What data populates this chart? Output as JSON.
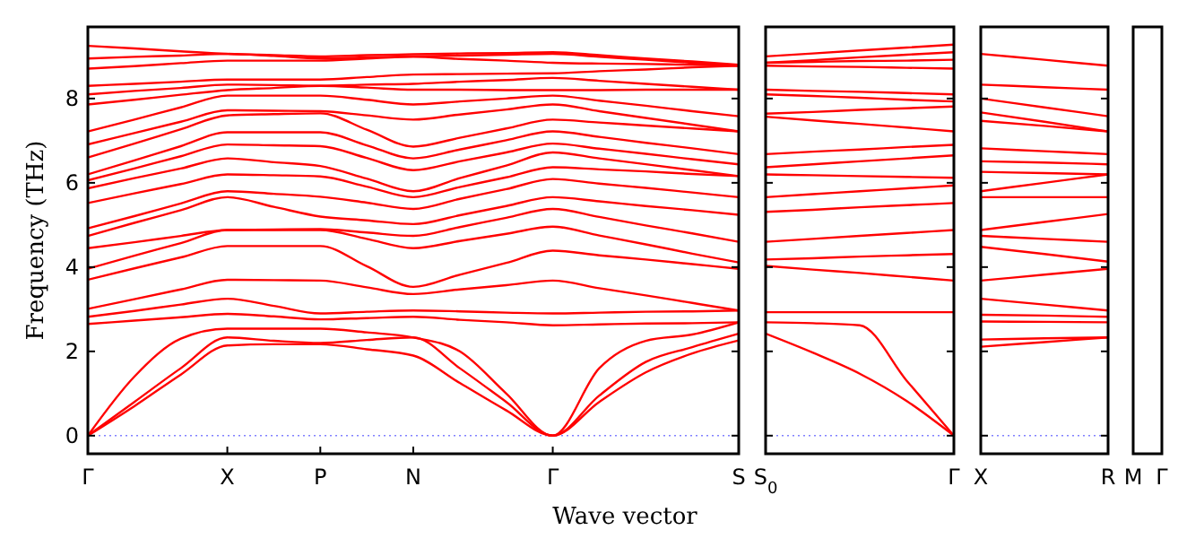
{
  "chart_data": [
    {
      "type": "line",
      "xlabel": "Wave vector",
      "ylabel": "Frequency (THz)",
      "ylim": [
        -0.43,
        9.7
      ],
      "yticks": [
        0,
        2,
        4,
        6,
        8
      ],
      "categories": [
        "Γ",
        null,
        null,
        "X",
        null,
        "P",
        null,
        "N",
        null,
        null,
        "Γ",
        null,
        null,
        null,
        "S"
      ],
      "ref_lines": [
        {
          "axis": "y",
          "value": 0,
          "color": "#8080ff",
          "line_style": "dotted"
        }
      ],
      "series": [
        {
          "color": "#ff0000",
          "values": [
            0,
            0.7,
            1.45,
            2.14,
            2.17,
            2.17,
            2.05,
            1.9,
            1.25,
            0.6,
            0,
            0.8,
            1.5,
            1.95,
            2.26
          ]
        },
        {
          "color": "#ff0000",
          "values": [
            0,
            0.8,
            1.6,
            2.33,
            2.25,
            2.2,
            2.27,
            2.33,
            1.6,
            0.8,
            0,
            0.95,
            1.75,
            2.1,
            2.42
          ]
        },
        {
          "color": "#ff0000",
          "values": [
            0,
            1.4,
            2.3,
            2.54,
            2.54,
            2.54,
            2.45,
            2.33,
            2.0,
            1.0,
            0,
            1.6,
            2.25,
            2.4,
            2.69
          ]
        },
        {
          "color": "#ff0000",
          "values": [
            2.65,
            2.73,
            2.81,
            2.89,
            2.83,
            2.76,
            2.79,
            2.82,
            2.75,
            2.69,
            2.62,
            2.64,
            2.66,
            2.67,
            2.69
          ]
        },
        {
          "color": "#ff0000",
          "values": [
            2.82,
            2.96,
            3.11,
            3.25,
            3.08,
            2.9,
            2.94,
            2.97,
            2.95,
            2.92,
            2.9,
            2.92,
            2.94,
            2.95,
            2.97
          ]
        },
        {
          "color": "#ff0000",
          "values": [
            3.01,
            3.24,
            3.47,
            3.7,
            3.69,
            3.68,
            3.52,
            3.36,
            3.47,
            3.57,
            3.68,
            3.5,
            3.33,
            3.15,
            2.97
          ]
        },
        {
          "color": "#ff0000",
          "values": [
            3.7,
            3.97,
            4.23,
            4.5,
            4.5,
            4.5,
            4.02,
            3.53,
            3.82,
            4.1,
            4.39,
            4.28,
            4.18,
            4.07,
            3.96
          ]
        },
        {
          "color": "#ff0000",
          "values": [
            3.96,
            4.27,
            4.57,
            4.88,
            4.88,
            4.88,
            4.67,
            4.45,
            4.62,
            4.79,
            4.96,
            4.75,
            4.54,
            4.32,
            4.11
          ]
        },
        {
          "color": "#ff0000",
          "values": [
            4.45,
            4.59,
            4.74,
            4.88,
            4.89,
            4.9,
            4.82,
            4.74,
            4.95,
            5.17,
            5.38,
            5.19,
            4.99,
            4.8,
            4.6
          ]
        },
        {
          "color": "#ff0000",
          "values": [
            4.74,
            5.05,
            5.35,
            5.66,
            5.43,
            5.2,
            5.11,
            5.02,
            5.23,
            5.45,
            5.66,
            5.56,
            5.45,
            5.35,
            5.24
          ]
        },
        {
          "color": "#ff0000",
          "values": [
            4.92,
            5.21,
            5.51,
            5.8,
            5.74,
            5.67,
            5.53,
            5.38,
            5.62,
            5.85,
            6.09,
            5.98,
            5.88,
            5.77,
            5.66
          ]
        },
        {
          "color": "#ff0000",
          "values": [
            5.52,
            5.75,
            5.97,
            6.2,
            6.18,
            6.15,
            5.91,
            5.66,
            5.9,
            6.13,
            6.37,
            6.32,
            6.27,
            6.21,
            6.16
          ]
        },
        {
          "color": "#ff0000",
          "values": [
            5.87,
            6.11,
            6.34,
            6.58,
            6.49,
            6.4,
            6.1,
            5.8,
            6.11,
            6.41,
            6.72,
            6.58,
            6.44,
            6.3,
            6.16
          ]
        },
        {
          "color": "#ff0000",
          "values": [
            6.06,
            6.34,
            6.63,
            6.91,
            6.89,
            6.87,
            6.59,
            6.3,
            6.51,
            6.72,
            6.93,
            6.81,
            6.69,
            6.56,
            6.44
          ]
        },
        {
          "color": "#ff0000",
          "values": [
            6.2,
            6.53,
            6.87,
            7.2,
            7.2,
            7.2,
            6.89,
            6.58,
            6.79,
            7.01,
            7.22,
            7.09,
            6.95,
            6.82,
            6.68
          ]
        },
        {
          "color": "#ff0000",
          "values": [
            6.6,
            6.93,
            7.27,
            7.6,
            7.63,
            7.65,
            7.26,
            6.86,
            7.07,
            7.29,
            7.5,
            7.43,
            7.36,
            7.29,
            7.22
          ]
        },
        {
          "color": "#ff0000",
          "values": [
            6.91,
            7.18,
            7.45,
            7.72,
            7.71,
            7.7,
            7.6,
            7.5,
            7.62,
            7.74,
            7.86,
            7.7,
            7.54,
            7.38,
            7.22
          ]
        },
        {
          "color": "#ff0000",
          "values": [
            7.22,
            7.5,
            7.79,
            8.07,
            8.07,
            8.07,
            7.97,
            7.86,
            7.93,
            8,
            8.07,
            7.95,
            7.83,
            7.7,
            7.58
          ]
        },
        {
          "color": "#ff0000",
          "values": [
            7.86,
            7.97,
            8.09,
            8.2,
            8.25,
            8.3,
            8.26,
            8.21,
            8.21,
            8.2,
            8.2,
            8.2,
            8.21,
            8.21,
            8.21
          ]
        },
        {
          "color": "#ff0000",
          "values": [
            8.1,
            8.18,
            8.25,
            8.33,
            8.32,
            8.3,
            8.33,
            8.35,
            8.4,
            8.44,
            8.49,
            8.42,
            8.35,
            8.28,
            8.21
          ]
        },
        {
          "color": "#ff0000",
          "values": [
            8.3,
            8.35,
            8.4,
            8.45,
            8.45,
            8.45,
            8.51,
            8.57,
            8.58,
            8.59,
            8.6,
            8.65,
            8.69,
            8.74,
            8.78
          ]
        },
        {
          "color": "#ff0000",
          "values": [
            8.71,
            8.77,
            8.84,
            8.9,
            8.9,
            8.9,
            8.95,
            8.99,
            8.94,
            8.9,
            8.85,
            8.83,
            8.82,
            8.8,
            8.78
          ]
        },
        {
          "color": "#ff0000",
          "values": [
            8.95,
            8.99,
            9.02,
            9.06,
            9.01,
            8.95,
            8.98,
            9,
            9.02,
            9.04,
            9.06,
            8.99,
            8.92,
            8.85,
            8.78
          ]
        },
        {
          "color": "#ff0000",
          "values": [
            9.25,
            9.19,
            9.12,
            9.06,
            9.03,
            9,
            9.03,
            9.05,
            9.07,
            9.08,
            9.1,
            9.03,
            8.95,
            8.88,
            8.8
          ]
        }
      ]
    },
    {
      "type": "line",
      "ylim": [
        -0.43,
        9.7
      ],
      "yticks": [
        0,
        2,
        4,
        6,
        8
      ],
      "tick_labels": "x",
      "categories": [
        "S$_{0}$",
        null,
        null,
        null,
        "Γ"
      ],
      "ref_lines": [
        {
          "axis": "y",
          "value": 0,
          "color": "#8080ff",
          "line_style": "dotted"
        }
      ],
      "series": [
        {
          "color": "#ff0000",
          "values": [
            2.42,
            1.97,
            1.47,
            0.82,
            0
          ]
        },
        {
          "color": "#ff0000",
          "values": [
            2.69,
            2.67,
            2.62,
            1.3,
            0
          ]
        },
        {
          "color": "#ff0000",
          "values": [
            2.93,
            2.93,
            2.93,
            2.93,
            2.93
          ]
        },
        {
          "color": "#ff0000",
          "values": [
            4.03,
            3.94,
            3.86,
            3.77,
            3.68
          ]
        },
        {
          "color": "#ff0000",
          "values": [
            4.18,
            4.21,
            4.25,
            4.28,
            4.31
          ]
        },
        {
          "color": "#ff0000",
          "values": [
            4.6,
            4.67,
            4.74,
            4.81,
            4.88
          ]
        },
        {
          "color": "#ff0000",
          "values": [
            5.31,
            5.36,
            5.42,
            5.47,
            5.52
          ]
        },
        {
          "color": "#ff0000",
          "values": [
            5.66,
            5.73,
            5.8,
            5.87,
            5.94
          ]
        },
        {
          "color": "#ff0000",
          "values": [
            6.2,
            6.18,
            6.16,
            6.14,
            6.12
          ]
        },
        {
          "color": "#ff0000",
          "values": [
            6.37,
            6.44,
            6.51,
            6.58,
            6.65
          ]
        },
        {
          "color": "#ff0000",
          "values": [
            6.68,
            6.74,
            6.79,
            6.85,
            6.9
          ]
        },
        {
          "color": "#ff0000",
          "values": [
            7.57,
            7.48,
            7.4,
            7.31,
            7.22
          ]
        },
        {
          "color": "#ff0000",
          "values": [
            7.64,
            7.68,
            7.73,
            7.77,
            7.81
          ]
        },
        {
          "color": "#ff0000",
          "values": [
            8.1,
            8.06,
            8.02,
            7.97,
            7.93
          ]
        },
        {
          "color": "#ff0000",
          "values": [
            8.21,
            8.18,
            8.16,
            8.13,
            8.1
          ]
        },
        {
          "color": "#ff0000",
          "values": [
            8.78,
            8.76,
            8.75,
            8.73,
            8.71
          ]
        },
        {
          "color": "#ff0000",
          "values": [
            8.85,
            8.87,
            8.89,
            8.9,
            8.92
          ]
        },
        {
          "color": "#ff0000",
          "values": [
            8.85,
            8.91,
            8.98,
            9.04,
            9.1
          ]
        },
        {
          "color": "#ff0000",
          "values": [
            9.0,
            9.07,
            9.14,
            9.21,
            9.28
          ]
        }
      ]
    },
    {
      "type": "line",
      "ylim": [
        -0.43,
        9.7
      ],
      "yticks": [
        0,
        2,
        4,
        6,
        8
      ],
      "tick_labels": "x",
      "categories": [
        "X",
        null,
        "R"
      ],
      "ref_lines": [
        {
          "axis": "y",
          "value": 0,
          "color": "#8080ff",
          "line_style": "dotted"
        }
      ],
      "series": [
        {
          "color": "#ff0000",
          "values": [
            2.11,
            2.22,
            2.33
          ]
        },
        {
          "color": "#ff0000",
          "values": [
            2.28,
            2.31,
            2.33
          ]
        },
        {
          "color": "#ff0000",
          "values": [
            2.71,
            2.7,
            2.69
          ]
        },
        {
          "color": "#ff0000",
          "values": [
            2.87,
            2.85,
            2.82
          ]
        },
        {
          "color": "#ff0000",
          "values": [
            3.25,
            3.11,
            2.97
          ]
        },
        {
          "color": "#ff0000",
          "values": [
            3.68,
            3.82,
            3.96
          ]
        },
        {
          "color": "#ff0000",
          "values": [
            4.48,
            4.31,
            4.13
          ]
        },
        {
          "color": "#ff0000",
          "values": [
            4.74,
            4.67,
            4.6
          ]
        },
        {
          "color": "#ff0000",
          "values": [
            4.88,
            5.07,
            5.26
          ]
        },
        {
          "color": "#ff0000",
          "values": [
            5.66,
            5.66,
            5.66
          ]
        },
        {
          "color": "#ff0000",
          "values": [
            5.8,
            6.0,
            6.2
          ]
        },
        {
          "color": "#ff0000",
          "values": [
            6.26,
            6.23,
            6.2
          ]
        },
        {
          "color": "#ff0000",
          "values": [
            6.51,
            6.48,
            6.44
          ]
        },
        {
          "color": "#ff0000",
          "values": [
            6.82,
            6.75,
            6.68
          ]
        },
        {
          "color": "#ff0000",
          "values": [
            7.47,
            7.35,
            7.22
          ]
        },
        {
          "color": "#ff0000",
          "values": [
            7.67,
            7.45,
            7.22
          ]
        },
        {
          "color": "#ff0000",
          "values": [
            8.0,
            7.79,
            7.58
          ]
        },
        {
          "color": "#ff0000",
          "values": [
            8.33,
            8.27,
            8.21
          ]
        },
        {
          "color": "#ff0000",
          "values": [
            9.06,
            8.92,
            8.78
          ]
        }
      ]
    },
    {
      "type": "other",
      "categories": [
        "M",
        "Γ"
      ]
    }
  ]
}
